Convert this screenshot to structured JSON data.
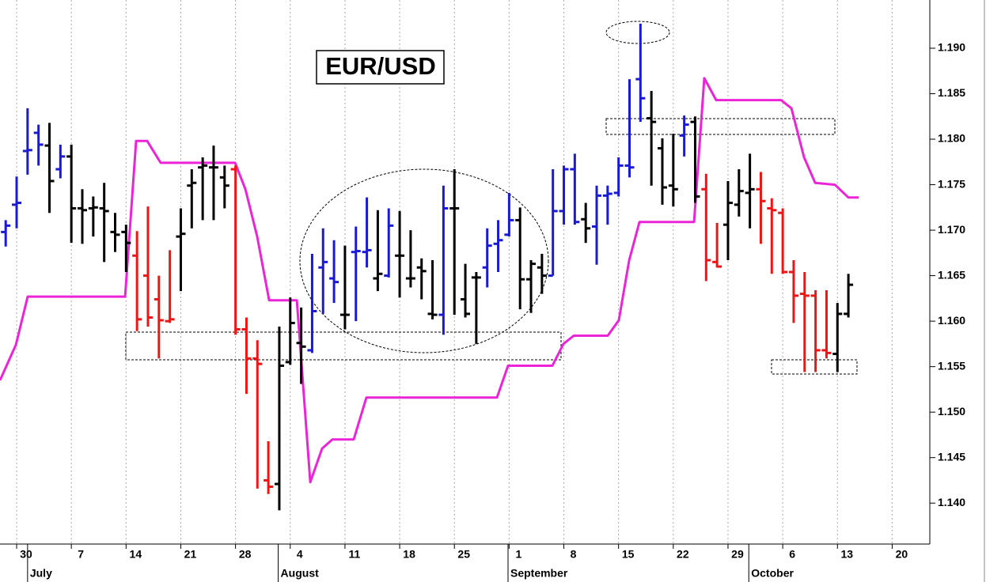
{
  "chart_data": {
    "type": "ohlc",
    "title": "EUR/USD",
    "x": [
      3,
      4,
      5,
      6,
      7,
      8,
      9,
      10,
      11,
      12,
      13,
      14,
      15,
      16,
      17,
      18,
      19,
      20,
      21,
      22,
      23,
      24,
      25,
      26,
      27,
      28,
      29,
      30,
      31,
      32,
      33,
      34,
      35,
      36,
      37,
      38,
      39,
      40,
      41,
      42,
      43,
      44,
      45,
      46,
      47,
      48,
      49,
      50,
      51,
      52,
      53,
      54,
      55,
      56,
      57,
      58,
      59,
      60,
      61,
      62,
      63,
      64,
      65,
      66,
      67,
      68,
      69,
      70,
      71,
      72,
      73,
      74,
      75,
      76,
      77,
      78,
      79,
      80
    ],
    "open": [
      1.1698,
      1.1728,
      1.1787,
      1.1807,
      1.1793,
      1.1767,
      1.1781,
      1.1724,
      1.1724,
      1.1724,
      1.1698,
      1.1698,
      1.1672,
      1.165,
      1.1624,
      1.16,
      1.1693,
      1.1749,
      1.1769,
      1.1769,
      1.1758,
      1.1767,
      1.1591,
      1.1559,
      1.1425,
      1.1421,
      1.1555,
      1.1576,
      1.1568,
      1.1659,
      1.1647,
      1.1607,
      1.1676,
      1.1676,
      1.1647,
      1.165,
      1.1672,
      1.1647,
      1.1659,
      1.1608,
      1.1607,
      1.1724,
      1.1624,
      1.1648,
      1.1659,
      1.1685,
      1.1695,
      1.1711,
      1.1646,
      1.1659,
      1.165,
      1.1721,
      1.1767,
      1.1712,
      1.1704,
      1.1738,
      1.1741,
      1.1771,
      1.1866,
      1.1823,
      1.179,
      1.1749,
      1.1804,
      1.1819,
      1.1745,
      1.1665,
      1.1706,
      1.1728,
      1.1741,
      1.1745,
      1.1724,
      1.1719,
      1.1654,
      1.163,
      1.1628,
      1.1568,
      1.1564,
      1.1608
    ],
    "high": [
      1.1711,
      1.1759,
      1.1834,
      1.1816,
      1.1818,
      1.1794,
      1.1794,
      1.1745,
      1.1737,
      1.1752,
      1.1719,
      1.1706,
      1.1699,
      1.1726,
      1.165,
      1.1678,
      1.1724,
      1.1767,
      1.178,
      1.1793,
      1.1771,
      1.1771,
      1.1604,
      1.1579,
      1.1468,
      1.1594,
      1.1626,
      1.1615,
      1.1674,
      1.1702,
      1.1689,
      1.1683,
      1.1704,
      1.1736,
      1.1722,
      1.1724,
      1.1721,
      1.17,
      1.1669,
      1.1667,
      1.1749,
      1.1767,
      1.1663,
      1.1654,
      1.1702,
      1.1711,
      1.1741,
      1.1725,
      1.1667,
      1.1674,
      1.1767,
      1.1771,
      1.1784,
      1.173,
      1.1749,
      1.1749,
      1.178,
      1.1866,
      1.1927,
      1.1853,
      1.1801,
      1.1806,
      1.1826,
      1.1825,
      1.1762,
      1.1708,
      1.1754,
      1.1767,
      1.1784,
      1.1764,
      1.1735,
      1.1724,
      1.1667,
      1.1654,
      1.1634,
      1.1634,
      1.162,
      1.1652
    ],
    "low": [
      1.1682,
      1.1702,
      1.1761,
      1.1771,
      1.1719,
      1.1757,
      1.1686,
      1.1685,
      1.1693,
      1.1665,
      1.1676,
      1.1654,
      1.1589,
      1.1594,
      1.1559,
      1.1598,
      1.1633,
      1.1702,
      1.1711,
      1.1711,
      1.1724,
      1.1585,
      1.152,
      1.1416,
      1.141,
      1.1392,
      1.1552,
      1.1531,
      1.1565,
      1.1608,
      1.162,
      1.1591,
      1.16,
      1.1659,
      1.1633,
      1.1648,
      1.1626,
      1.1637,
      1.1624,
      1.1602,
      1.1585,
      1.1607,
      1.1604,
      1.1575,
      1.1637,
      1.1654,
      1.1693,
      1.1613,
      1.1609,
      1.163,
      1.165,
      1.1706,
      1.1706,
      1.1686,
      1.1662,
      1.1706,
      1.1737,
      1.1758,
      1.1819,
      1.1749,
      1.1728,
      1.1726,
      1.1781,
      1.173,
      1.1644,
      1.1659,
      1.1667,
      1.1715,
      1.1702,
      1.1685,
      1.1652,
      1.1652,
      1.1598,
      1.1544,
      1.1544,
      1.1559,
      1.1544,
      1.1604
    ],
    "close": [
      1.1705,
      1.173,
      1.1788,
      1.1794,
      1.1754,
      1.1781,
      1.1724,
      1.1722,
      1.1725,
      1.1721,
      1.1695,
      1.1686,
      1.1602,
      1.1604,
      1.1601,
      1.1602,
      1.1696,
      1.1752,
      1.1771,
      1.1769,
      1.1749,
      1.1591,
      1.1559,
      1.1553,
      1.1418,
      1.1551,
      1.1598,
      1.1572,
      1.1611,
      1.1665,
      1.1643,
      1.1607,
      1.1677,
      1.1678,
      1.1652,
      1.1705,
      1.1672,
      1.1647,
      1.1655,
      1.1607,
      1.1724,
      1.1724,
      1.1608,
      1.1648,
      1.1683,
      1.1689,
      1.1711,
      1.1646,
      1.1663,
      1.165,
      1.1721,
      1.1767,
      1.1709,
      1.1702,
      1.1738,
      1.174,
      1.1771,
      1.1769,
      1.1845,
      1.1819,
      1.1747,
      1.1745,
      1.1816,
      1.1737,
      1.1667,
      1.166,
      1.173,
      1.1743,
      1.1745,
      1.1732,
      1.1722,
      1.1654,
      1.1628,
      1.1628,
      1.1568,
      1.1565,
      1.1608,
      1.164
    ],
    "colors": [
      "#1a1ad6",
      "#1a1ad6",
      "#1a1ad6",
      "#1a1ad6",
      "#000000",
      "#1a1ad6",
      "#000000",
      "#000000",
      "#000000",
      "#000000",
      "#000000",
      "#000000",
      "#f01414",
      "#f01414",
      "#f01414",
      "#f01414",
      "#000000",
      "#000000",
      "#000000",
      "#000000",
      "#000000",
      "#f01414",
      "#f01414",
      "#f01414",
      "#f01414",
      "#000000",
      "#000000",
      "#000000",
      "#1a1ad6",
      "#1a1ad6",
      "#1a1ad6",
      "#000000",
      "#1a1ad6",
      "#1a1ad6",
      "#000000",
      "#1a1ad6",
      "#000000",
      "#000000",
      "#000000",
      "#000000",
      "#1a1ad6",
      "#000000",
      "#000000",
      "#000000",
      "#1a1ad6",
      "#1a1ad6",
      "#1a1ad6",
      "#000000",
      "#000000",
      "#000000",
      "#1a1ad6",
      "#1a1ad6",
      "#1a1ad6",
      "#000000",
      "#1a1ad6",
      "#1a1ad6",
      "#1a1ad6",
      "#1a1ad6",
      "#1a1ad6",
      "#000000",
      "#000000",
      "#000000",
      "#1a1ad6",
      "#000000",
      "#f01414",
      "#f01414",
      "#000000",
      "#000000",
      "#000000",
      "#f01414",
      "#f01414",
      "#f01414",
      "#f01414",
      "#f01414",
      "#f01414",
      "#f01414",
      "#000000",
      "#000000"
    ],
    "stop_line": {
      "color": "#ec24d8",
      "x": [
        2.48,
        3.93,
        5.01,
        13.91,
        14.92,
        15.93,
        17.16,
        23.96,
        24.9,
        25.98,
        27.07,
        29.6,
        30.83,
        31.91,
        32.85,
        34.8,
        35.96,
        47.89,
        48.9,
        52.95,
        53.96,
        54.9,
        58.01,
        59.02,
        59.97,
        60.91,
        65.9,
        66.83,
        67.92,
        73.85,
        74.79,
        75.95,
        76.96,
        78.77,
        79.99,
        80.93
      ],
      "values": [
        1.1535,
        1.1574,
        1.1627,
        1.1627,
        1.1798,
        1.1798,
        1.1774,
        1.1774,
        1.1745,
        1.1693,
        1.1623,
        1.1623,
        1.1423,
        1.146,
        1.147,
        1.147,
        1.1516,
        1.1516,
        1.1551,
        1.1551,
        1.1575,
        1.1584,
        1.1584,
        1.1601,
        1.1667,
        1.1709,
        1.1709,
        1.1867,
        1.1843,
        1.1843,
        1.1834,
        1.178,
        1.1752,
        1.175,
        1.1736,
        1.1736
      ]
    },
    "xlim": [
      2.48,
      87.44
    ],
    "xticks": [
      {
        "value": 4,
        "label": "30"
      },
      {
        "value": 9,
        "label": "7"
      },
      {
        "value": 14,
        "label": "14"
      },
      {
        "value": 19,
        "label": "21"
      },
      {
        "value": 24,
        "label": "28"
      },
      {
        "value": 29,
        "label": "4"
      },
      {
        "value": 34,
        "label": "11"
      },
      {
        "value": 39,
        "label": "18"
      },
      {
        "value": 44,
        "label": "25"
      },
      {
        "value": 49,
        "label": "1"
      },
      {
        "value": 54,
        "label": "8"
      },
      {
        "value": 59,
        "label": "15"
      },
      {
        "value": 64,
        "label": "22"
      },
      {
        "value": 69,
        "label": "29"
      },
      {
        "value": 74,
        "label": "6"
      },
      {
        "value": 79,
        "label": "13"
      },
      {
        "value": 84,
        "label": "20"
      }
    ],
    "month_labels": [
      {
        "value": 5,
        "label": "July"
      },
      {
        "value": 27.9,
        "label": "August"
      },
      {
        "value": 48.9,
        "label": "September"
      },
      {
        "value": 70.9,
        "label": "October"
      }
    ],
    "ylim": [
      1.1355,
      1.1953
    ],
    "yticks": [
      {
        "value": 1.14,
        "label": "1.140"
      },
      {
        "value": 1.145,
        "label": "1.145"
      },
      {
        "value": 1.15,
        "label": "1.150"
      },
      {
        "value": 1.155,
        "label": "1.155"
      },
      {
        "value": 1.16,
        "label": "1.160"
      },
      {
        "value": 1.165,
        "label": "1.165"
      },
      {
        "value": 1.17,
        "label": "1.170"
      },
      {
        "value": 1.175,
        "label": "1.175"
      },
      {
        "value": 1.18,
        "label": "1.180"
      },
      {
        "value": 1.185,
        "label": "1.185"
      },
      {
        "value": 1.19,
        "label": "1.190"
      }
    ],
    "grid": true
  }
}
